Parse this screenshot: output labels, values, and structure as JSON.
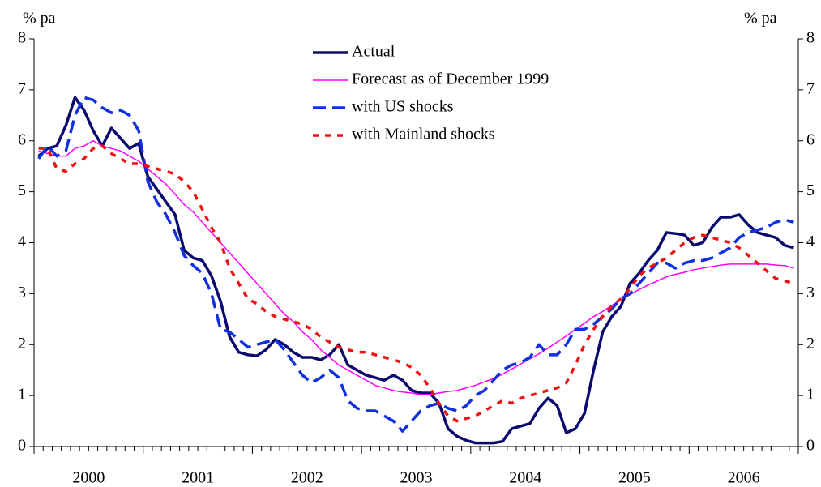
{
  "chart_data": {
    "type": "line",
    "ylabel": "% pa",
    "y2label": "% pa",
    "xlabels": [
      "2000",
      "2001",
      "2002",
      "2003",
      "2004",
      "2005",
      "2006"
    ],
    "ylim": [
      0,
      8
    ],
    "yticks": [
      0,
      1,
      2,
      3,
      4,
      5,
      6,
      7,
      8
    ],
    "y2lim": [
      0,
      8
    ],
    "y2ticks": [
      0,
      1,
      2,
      3,
      4,
      5,
      6,
      7,
      8
    ],
    "grid": false,
    "series": [
      {
        "name": "Actual",
        "color": "#0a0a6e",
        "line_style": "solid",
        "line_width": 3.5,
        "values": [
          5.7,
          5.85,
          5.9,
          6.3,
          6.85,
          6.6,
          6.2,
          5.9,
          6.25,
          6.05,
          5.85,
          5.95,
          5.3,
          5.05,
          4.8,
          4.55,
          3.85,
          3.7,
          3.65,
          3.35,
          2.85,
          2.15,
          1.85,
          1.8,
          1.78,
          1.9,
          2.1,
          2.0,
          1.85,
          1.75,
          1.75,
          1.7,
          1.8,
          2.0,
          1.6,
          1.5,
          1.4,
          1.35,
          1.3,
          1.4,
          1.3,
          1.1,
          1.05,
          1.05,
          0.85,
          0.35,
          0.2,
          0.12,
          0.07,
          0.07,
          0.07,
          0.1,
          0.35,
          0.4,
          0.45,
          0.75,
          0.95,
          0.8,
          0.27,
          0.35,
          0.65,
          1.5,
          2.25,
          2.55,
          2.75,
          3.2,
          3.4,
          3.65,
          3.85,
          4.2,
          4.18,
          4.15,
          3.95,
          4.0,
          4.3,
          4.5,
          4.5,
          4.55,
          4.35,
          4.2,
          4.15,
          4.1,
          3.95,
          3.9
        ]
      },
      {
        "name": "Forecast as of December 1999",
        "color": "#ff00ff",
        "line_style": "solid",
        "line_width": 1.5,
        "values": [
          5.8,
          5.75,
          5.7,
          5.7,
          5.85,
          5.9,
          6.0,
          5.9,
          5.85,
          5.8,
          5.7,
          5.6,
          5.45,
          5.3,
          5.15,
          4.95,
          4.75,
          4.6,
          4.4,
          4.2,
          4.0,
          3.8,
          3.6,
          3.4,
          3.2,
          3.0,
          2.8,
          2.6,
          2.45,
          2.25,
          2.1,
          1.9,
          1.75,
          1.6,
          1.5,
          1.4,
          1.3,
          1.2,
          1.15,
          1.1,
          1.07,
          1.05,
          1.02,
          1.02,
          1.05,
          1.08,
          1.1,
          1.15,
          1.2,
          1.27,
          1.33,
          1.42,
          1.52,
          1.62,
          1.72,
          1.82,
          1.93,
          2.05,
          2.17,
          2.3,
          2.42,
          2.55,
          2.65,
          2.77,
          2.88,
          2.98,
          3.08,
          3.17,
          3.25,
          3.33,
          3.38,
          3.42,
          3.47,
          3.5,
          3.53,
          3.56,
          3.58,
          3.58,
          3.58,
          3.58,
          3.58,
          3.56,
          3.55,
          3.5
        ]
      },
      {
        "name": "with US shocks",
        "color": "#1030e0",
        "line_style": "dashed",
        "line_width": 3.5,
        "values": [
          5.65,
          5.9,
          5.7,
          5.8,
          6.5,
          6.85,
          6.8,
          6.65,
          6.55,
          6.6,
          6.5,
          6.2,
          5.2,
          4.8,
          4.55,
          4.2,
          3.75,
          3.55,
          3.4,
          3.0,
          2.3,
          2.25,
          2.1,
          1.95,
          2.0,
          2.05,
          2.1,
          1.9,
          1.65,
          1.4,
          1.25,
          1.35,
          1.5,
          1.35,
          0.9,
          0.75,
          0.7,
          0.7,
          0.6,
          0.5,
          0.3,
          0.5,
          0.7,
          0.8,
          0.85,
          0.75,
          0.7,
          0.8,
          1.0,
          1.1,
          1.3,
          1.5,
          1.6,
          1.65,
          1.75,
          2.0,
          1.8,
          1.8,
          2.0,
          2.3,
          2.3,
          2.4,
          2.55,
          2.7,
          2.9,
          3.0,
          3.2,
          3.4,
          3.6,
          3.6,
          3.5,
          3.6,
          3.65,
          3.65,
          3.7,
          3.8,
          3.9,
          4.1,
          4.2,
          4.25,
          4.3,
          4.4,
          4.45,
          4.4
        ]
      },
      {
        "name": "with Mainland shocks",
        "color": "#ee1111",
        "line_style": "dotted",
        "line_width": 3.5,
        "values": [
          5.85,
          5.85,
          5.45,
          5.4,
          5.55,
          5.65,
          5.85,
          5.9,
          5.75,
          5.65,
          5.55,
          5.55,
          5.5,
          5.45,
          5.4,
          5.35,
          5.2,
          5.0,
          4.65,
          4.3,
          4.0,
          3.5,
          3.2,
          2.9,
          2.8,
          2.65,
          2.55,
          2.5,
          2.45,
          2.4,
          2.3,
          2.15,
          2.05,
          1.95,
          1.9,
          1.85,
          1.85,
          1.8,
          1.75,
          1.7,
          1.65,
          1.55,
          1.4,
          1.15,
          0.85,
          0.6,
          0.5,
          0.55,
          0.6,
          0.7,
          0.8,
          0.9,
          0.85,
          0.95,
          1.0,
          1.05,
          1.1,
          1.15,
          1.25,
          1.6,
          2.0,
          2.3,
          2.55,
          2.75,
          2.9,
          3.1,
          3.35,
          3.5,
          3.6,
          3.7,
          3.85,
          4.0,
          4.1,
          4.15,
          4.1,
          4.05,
          4.0,
          3.9,
          3.75,
          3.6,
          3.45,
          3.3,
          3.25,
          3.2
        ]
      }
    ]
  }
}
